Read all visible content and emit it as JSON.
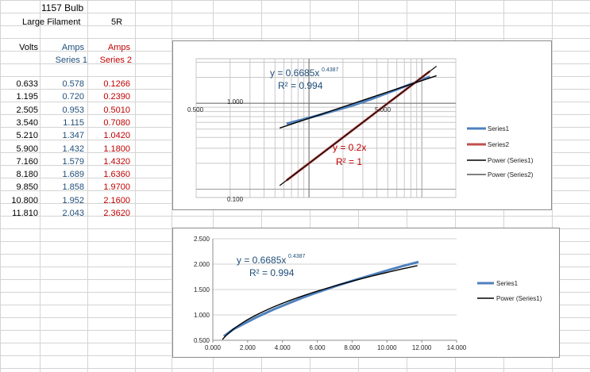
{
  "sheet": {
    "title": "1157 Bulb",
    "subtitle": "Large Filament",
    "resistance": "5R",
    "headers": {
      "volts": "Volts",
      "amps1": "Amps",
      "series1": "Series 1",
      "amps2": "Amps",
      "series2": "Series 2"
    },
    "rows": [
      {
        "v": "0.633",
        "a1": "0.578",
        "a2": "0.1266"
      },
      {
        "v": "1.195",
        "a1": "0.720",
        "a2": "0.2390"
      },
      {
        "v": "2.505",
        "a1": "0.953",
        "a2": "0.5010"
      },
      {
        "v": "3.540",
        "a1": "1.115",
        "a2": "0.7080"
      },
      {
        "v": "5.210",
        "a1": "1.347",
        "a2": "1.0420"
      },
      {
        "v": "5.900",
        "a1": "1.432",
        "a2": "1.1800"
      },
      {
        "v": "7.160",
        "a1": "1.579",
        "a2": "1.4320"
      },
      {
        "v": "8.180",
        "a1": "1.689",
        "a2": "1.6360"
      },
      {
        "v": "9.850",
        "a1": "1.858",
        "a2": "1.9700"
      },
      {
        "v": "10.800",
        "a1": "1.952",
        "a2": "2.1600"
      },
      {
        "v": "11.810",
        "a1": "2.043",
        "a2": "2.3620"
      }
    ],
    "colors": {
      "series1": "#4f81bd",
      "series2": "#c0504d",
      "grid": "#d4d4d4",
      "text_blue": "#1f4e79",
      "text_red": "#c00000"
    }
  },
  "chart_data": [
    {
      "type": "line",
      "scale": "log-log",
      "x": [
        0.633,
        1.195,
        2.505,
        3.54,
        5.21,
        5.9,
        7.16,
        8.18,
        9.85,
        10.8,
        11.81
      ],
      "series": [
        {
          "name": "Series1",
          "values": [
            0.578,
            0.72,
            0.953,
            1.115,
            1.347,
            1.432,
            1.579,
            1.689,
            1.858,
            1.952,
            2.043
          ]
        },
        {
          "name": "Series2",
          "values": [
            0.1266,
            0.239,
            0.501,
            0.708,
            1.042,
            1.18,
            1.432,
            1.636,
            1.97,
            2.16,
            2.362
          ]
        }
      ],
      "legend": [
        "Series1",
        "Series2",
        "Power (Series1)",
        "Power (Series2)"
      ],
      "legend_placement": "right",
      "tick_labels": {
        "x_mid": "0.500",
        "x_right": "5.000",
        "y_upper": "1.000",
        "y_lower": "0.100"
      },
      "annotations": {
        "eq1_a": "y = 0.6685x",
        "eq1_exp": "0.4387",
        "r2_1": "R² = 0.994",
        "eq2": "y = 0.2x",
        "r2_2": "R² = 1"
      }
    },
    {
      "type": "line",
      "x": [
        0.633,
        1.195,
        2.505,
        3.54,
        5.21,
        5.9,
        7.16,
        8.18,
        9.85,
        10.8,
        11.81
      ],
      "series": [
        {
          "name": "Series1",
          "values": [
            0.578,
            0.72,
            0.953,
            1.115,
            1.347,
            1.432,
            1.579,
            1.689,
            1.858,
            1.952,
            2.043
          ]
        }
      ],
      "legend": [
        "Series1",
        "Power (Series1)"
      ],
      "legend_placement": "right",
      "xlim": [
        0,
        14
      ],
      "ylim": [
        0.5,
        2.5
      ],
      "x_ticks": [
        "0.000",
        "2.000",
        "4.000",
        "6.000",
        "8.000",
        "10.000",
        "12.000",
        "14.000"
      ],
      "y_ticks": [
        "0.500",
        "1.000",
        "1.500",
        "2.000",
        "2.500"
      ],
      "annotations": {
        "eq1_a": "y = 0.6685x",
        "eq1_exp": "0.4387",
        "r2_1": "R² = 0.994"
      }
    }
  ]
}
